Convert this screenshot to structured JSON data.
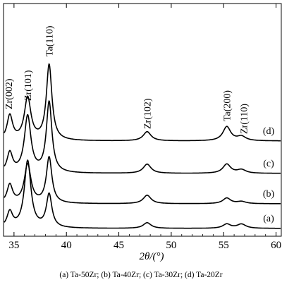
{
  "chart_data": {
    "type": "line",
    "xlabel": "2θ/(°)",
    "xlim": [
      34,
      60.5
    ],
    "x_ticks": [
      35,
      40,
      45,
      50,
      55,
      60
    ],
    "y_ticks_labeled": false,
    "grid": false,
    "series": [
      {
        "name": "(a)",
        "peaks": [
          {
            "pos": 34.6,
            "height": 22,
            "width": 0.32
          },
          {
            "pos": 36.3,
            "height": 95,
            "width": 0.38
          },
          {
            "pos": 38.35,
            "height": 47,
            "width": 0.32
          },
          {
            "pos": 47.7,
            "height": 8,
            "width": 0.45
          },
          {
            "pos": 55.3,
            "height": 6,
            "width": 0.45
          },
          {
            "pos": 56.7,
            "height": 6,
            "width": 0.5
          }
        ]
      },
      {
        "name": "(b)",
        "peaks": [
          {
            "pos": 34.6,
            "height": 26,
            "width": 0.32
          },
          {
            "pos": 36.3,
            "height": 55,
            "width": 0.38
          },
          {
            "pos": 38.35,
            "height": 65,
            "width": 0.32
          },
          {
            "pos": 47.7,
            "height": 12,
            "width": 0.45
          },
          {
            "pos": 55.3,
            "height": 8,
            "width": 0.45
          },
          {
            "pos": 56.7,
            "height": 3,
            "width": 0.5
          }
        ]
      },
      {
        "name": "(c)",
        "peaks": [
          {
            "pos": 34.6,
            "height": 28,
            "width": 0.32
          },
          {
            "pos": 36.3,
            "height": 80,
            "width": 0.38
          },
          {
            "pos": 38.35,
            "height": 100,
            "width": 0.32
          },
          {
            "pos": 47.7,
            "height": 13,
            "width": 0.45
          },
          {
            "pos": 55.3,
            "height": 13,
            "width": 0.45
          },
          {
            "pos": 56.7,
            "height": 5,
            "width": 0.5
          }
        ]
      },
      {
        "name": "(d)",
        "peaks": [
          {
            "pos": 34.6,
            "height": 35,
            "width": 0.32
          },
          {
            "pos": 36.3,
            "height": 60,
            "width": 0.38
          },
          {
            "pos": 38.35,
            "height": 107,
            "width": 0.32
          },
          {
            "pos": 47.7,
            "height": 13,
            "width": 0.45
          },
          {
            "pos": 55.3,
            "height": 20,
            "width": 0.45
          },
          {
            "pos": 56.7,
            "height": 6,
            "width": 0.5
          }
        ]
      }
    ],
    "annotations": [
      {
        "text": "Zr(002)",
        "x": 34.6
      },
      {
        "text": "Zr(101)",
        "x": 36.3
      },
      {
        "text": "Ta(110)",
        "x": 38.35
      },
      {
        "text": "Zr(102)",
        "x": 47.7
      },
      {
        "text": "Ta(200)",
        "x": 55.3
      },
      {
        "text": "Zr(110)",
        "x": 56.7
      }
    ]
  },
  "caption": "(a) Ta-50Zr; (b) Ta-40Zr; (c) Ta-30Zr; (d) Ta-20Zr"
}
